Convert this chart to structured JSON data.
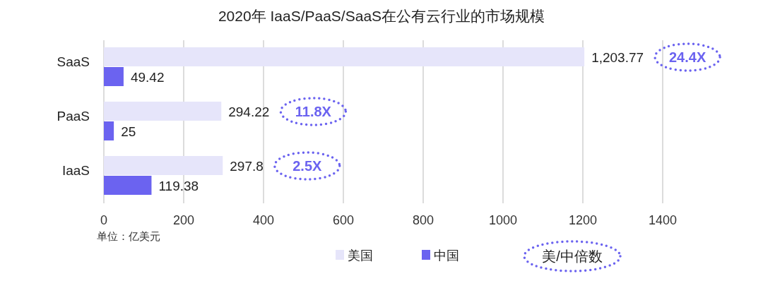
{
  "chart_data": {
    "type": "bar",
    "orientation": "horizontal",
    "title": "2020年 IaaS/PaaS/SaaS在公有云行业的市场规模",
    "xlabel": "单位：亿美元",
    "categories": [
      "SaaS",
      "PaaS",
      "IaaS"
    ],
    "series": [
      {
        "name": "美国",
        "color": "#e6e5fa",
        "values": [
          1203.77,
          294.22,
          297.8
        ]
      },
      {
        "name": "中国",
        "color": "#6b63f0",
        "values": [
          49.42,
          25,
          119.38
        ]
      }
    ],
    "value_labels": [
      [
        "1,203.77",
        "294.22",
        "297.8"
      ],
      [
        "49.42",
        "25",
        "119.38"
      ]
    ],
    "annotations": [
      "24.4X",
      "11.8X",
      "2.5X",
      "美/中倍数"
    ],
    "xlim": [
      0,
      1400
    ],
    "xticks": [
      0,
      200,
      400,
      600,
      800,
      1000,
      1200,
      1400
    ],
    "grid": "x",
    "legend": "bottom"
  }
}
